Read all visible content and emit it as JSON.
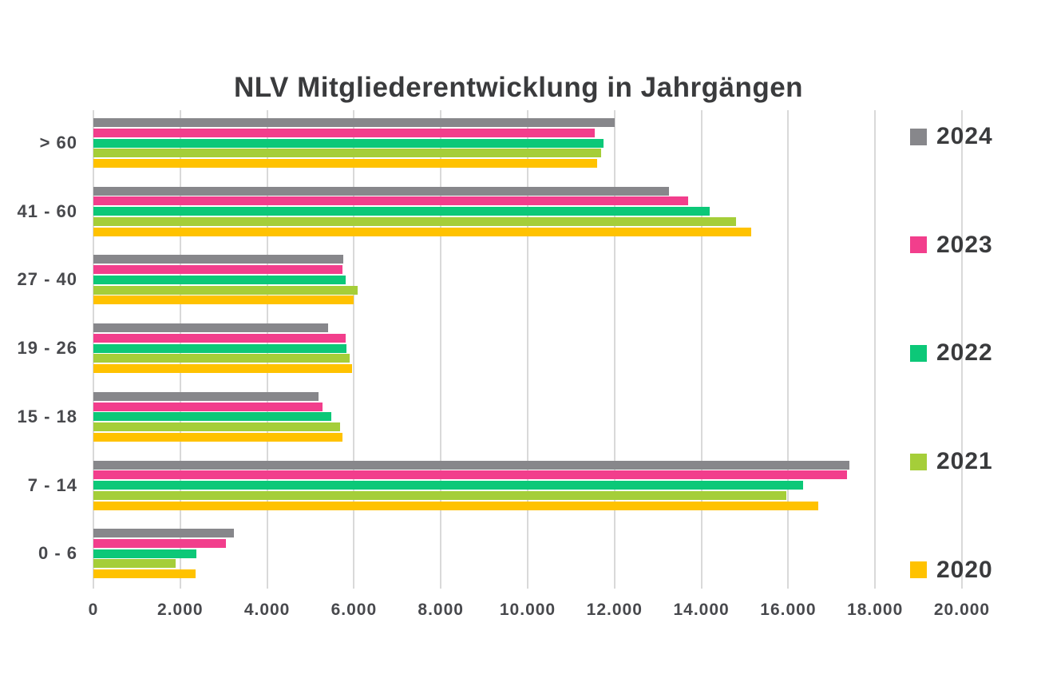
{
  "colors": {
    "background": "#FFFFFF",
    "gridline": "#D9D9D9",
    "title_text": "#3A3B3D",
    "axis_text": "#48494D",
    "legend_text": "#3A3B3D"
  },
  "chart_data": {
    "type": "bar",
    "orientation": "horizontal",
    "title": "NLV Mitgliederentwicklung in Jahrgängen",
    "categories": [
      "> 60",
      "41 - 60",
      "27 - 40",
      "19 - 26",
      "15 - 18",
      "7 - 14",
      "0 - 6"
    ],
    "series": [
      {
        "name": "2024",
        "color": "#87878B",
        "values": [
          12000,
          13250,
          5760,
          5400,
          5190,
          17400,
          3240
        ]
      },
      {
        "name": "2023",
        "color": "#F23E8C",
        "values": [
          11550,
          13700,
          5740,
          5800,
          5280,
          17350,
          3050
        ]
      },
      {
        "name": "2022",
        "color": "#0CC878",
        "values": [
          11750,
          14200,
          5810,
          5820,
          5470,
          16350,
          2370
        ]
      },
      {
        "name": "2021",
        "color": "#A5CE39",
        "values": [
          11700,
          14800,
          6080,
          5900,
          5680,
          15950,
          1900
        ]
      },
      {
        "name": "2020",
        "color": "#FFC200",
        "values": [
          11600,
          15150,
          6000,
          5960,
          5740,
          16700,
          2360
        ]
      }
    ],
    "x_axis": {
      "min": 0,
      "max": 20000,
      "tick_step": 2000,
      "tick_values": [
        0,
        2000,
        4000,
        6000,
        8000,
        10000,
        12000,
        14000,
        16000,
        18000,
        20000
      ],
      "tick_labels": [
        "0",
        "2.000",
        "4.000",
        "6.000",
        "8.000",
        "10.000",
        "12.000",
        "14.000",
        "16.000",
        "18.000",
        "20.000"
      ]
    },
    "grid": "vertical",
    "legend": {
      "position": "right",
      "entries": [
        "2024",
        "2023",
        "2022",
        "2021",
        "2020"
      ]
    }
  }
}
